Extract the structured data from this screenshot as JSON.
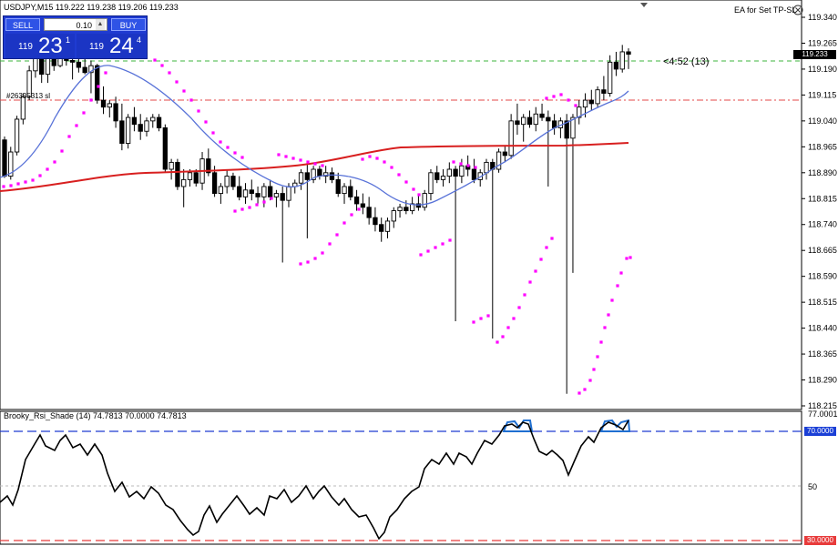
{
  "header": {
    "symbol_info": "USDJPY,M15  119.222 119.238 119.206 119.233",
    "ea_label": "EA for Set TP-SL",
    "ea_icon": "close-circle-icon"
  },
  "trade_panel": {
    "sell_label": "SELL",
    "buy_label": "BUY",
    "lot_value": "0.10",
    "sell_prefix": "119",
    "sell_big": "23",
    "sell_sup": "1",
    "buy_prefix": "119",
    "buy_big": "24",
    "buy_sup": "4",
    "spin_down": "▼",
    "spin_up": "▲"
  },
  "main_chart": {
    "order_label": "#26335313 sl",
    "countdown": "<4:52 (13)",
    "current_price_tag": "119.233",
    "price_ticks": [
      "119.340",
      "119.265",
      "119.190",
      "119.115",
      "119.040",
      "118.965",
      "118.890",
      "118.815",
      "118.740",
      "118.665",
      "118.590",
      "118.515",
      "118.440",
      "118.365",
      "118.290",
      "118.215"
    ]
  },
  "indicator": {
    "title": "Brooky_Rsi_Shade (14) 74.7813 70.0000 74.7813",
    "ticks": [
      "77.0001",
      "70.0000",
      "50",
      "30.0000"
    ]
  },
  "colors": {
    "bull_candle": "#000000",
    "bear_candle": "#000000",
    "ma_fast": "#4a62d6",
    "ma_slow": "#d81f1f",
    "psar": "#ff00ff",
    "rsi_line": "#000000",
    "rsi_shade": "#1f6fd1",
    "level_70": "#1f3bd1",
    "level_30": "#e83b3b"
  },
  "chart_data": {
    "type": "candlestick",
    "symbol": "USDJPY",
    "timeframe": "M15",
    "ylim": [
      118.215,
      119.34
    ],
    "candles_ohlc": [
      [
        118.985,
        118.995,
        118.875,
        118.88
      ],
      [
        118.88,
        118.965,
        118.87,
        118.95
      ],
      [
        118.95,
        119.055,
        118.94,
        119.045
      ],
      [
        119.045,
        119.12,
        119.03,
        119.11
      ],
      [
        119.11,
        119.2,
        119.1,
        119.185
      ],
      [
        119.185,
        119.26,
        119.165,
        119.23
      ],
      [
        119.23,
        119.27,
        119.15,
        119.175
      ],
      [
        119.175,
        119.25,
        119.15,
        119.225
      ],
      [
        119.225,
        119.265,
        119.185,
        119.2
      ],
      [
        119.2,
        119.25,
        119.195,
        119.23
      ],
      [
        119.23,
        119.26,
        119.2,
        119.215
      ],
      [
        119.215,
        119.23,
        119.16,
        119.21
      ],
      [
        119.21,
        119.235,
        119.18,
        119.195
      ],
      [
        119.195,
        119.22,
        119.175,
        119.18
      ],
      [
        119.18,
        119.215,
        119.12,
        119.2
      ],
      [
        119.2,
        119.205,
        119.09,
        119.1
      ],
      [
        119.1,
        119.14,
        119.06,
        119.08
      ],
      [
        119.08,
        119.1,
        119.05,
        119.09
      ],
      [
        119.09,
        119.11,
        119.02,
        119.04
      ],
      [
        119.04,
        119.09,
        118.955,
        118.975
      ],
      [
        118.975,
        119.06,
        118.96,
        119.05
      ],
      [
        119.05,
        119.08,
        119.01,
        119.03
      ],
      [
        119.03,
        119.06,
        118.985,
        119.01
      ],
      [
        119.01,
        119.05,
        118.995,
        119.04
      ],
      [
        119.04,
        119.06,
        119.02,
        119.05
      ],
      [
        119.05,
        119.06,
        119.01,
        119.02
      ],
      [
        119.02,
        119.03,
        118.89,
        118.9
      ],
      [
        118.9,
        118.93,
        118.87,
        118.92
      ],
      [
        118.92,
        118.93,
        118.84,
        118.85
      ],
      [
        118.85,
        118.9,
        118.79,
        118.87
      ],
      [
        118.87,
        118.9,
        118.85,
        118.89
      ],
      [
        118.89,
        118.9,
        118.85,
        118.86
      ],
      [
        118.86,
        118.95,
        118.84,
        118.93
      ],
      [
        118.93,
        118.96,
        118.88,
        118.89
      ],
      [
        118.89,
        118.91,
        118.82,
        118.83
      ],
      [
        118.83,
        118.86,
        118.8,
        118.85
      ],
      [
        118.85,
        118.9,
        118.83,
        118.88
      ],
      [
        118.88,
        118.89,
        118.84,
        118.85
      ],
      [
        118.85,
        118.88,
        118.81,
        118.82
      ],
      [
        118.82,
        118.86,
        118.8,
        118.84
      ],
      [
        118.84,
        118.87,
        118.81,
        118.83
      ],
      [
        118.83,
        118.85,
        118.8,
        118.82
      ],
      [
        118.82,
        118.86,
        118.79,
        118.85
      ],
      [
        118.85,
        118.87,
        118.81,
        118.82
      ],
      [
        118.82,
        118.84,
        118.79,
        118.83
      ],
      [
        118.83,
        118.85,
        118.63,
        118.81
      ],
      [
        118.81,
        118.86,
        118.79,
        118.85
      ],
      [
        118.85,
        118.87,
        118.83,
        118.86
      ],
      [
        118.86,
        118.9,
        118.84,
        118.89
      ],
      [
        118.89,
        118.92,
        118.7,
        118.87
      ],
      [
        118.87,
        118.91,
        118.86,
        118.9
      ],
      [
        118.9,
        118.91,
        118.87,
        118.88
      ],
      [
        118.88,
        118.91,
        118.86,
        118.89
      ],
      [
        118.89,
        118.905,
        118.86,
        118.87
      ],
      [
        118.87,
        118.89,
        118.82,
        118.83
      ],
      [
        118.83,
        118.86,
        118.8,
        118.85
      ],
      [
        118.85,
        118.87,
        118.81,
        118.82
      ],
      [
        118.82,
        118.84,
        118.78,
        118.8
      ],
      [
        118.8,
        118.83,
        118.77,
        118.79
      ],
      [
        118.79,
        118.82,
        118.74,
        118.76
      ],
      [
        118.76,
        118.79,
        118.72,
        118.74
      ],
      [
        118.74,
        118.76,
        118.69,
        118.72
      ],
      [
        118.72,
        118.76,
        118.7,
        118.75
      ],
      [
        118.75,
        118.79,
        118.73,
        118.78
      ],
      [
        118.78,
        118.8,
        118.76,
        118.79
      ],
      [
        118.79,
        118.81,
        118.77,
        118.78
      ],
      [
        118.78,
        118.82,
        118.77,
        118.8
      ],
      [
        118.8,
        118.83,
        118.78,
        118.79
      ],
      [
        118.79,
        118.84,
        118.78,
        118.83
      ],
      [
        118.83,
        118.9,
        118.81,
        118.89
      ],
      [
        118.89,
        118.91,
        118.86,
        118.87
      ],
      [
        118.87,
        118.9,
        118.85,
        118.88
      ],
      [
        118.88,
        118.92,
        118.86,
        118.9
      ],
      [
        118.9,
        118.91,
        118.46,
        118.88
      ],
      [
        118.88,
        118.93,
        118.86,
        118.91
      ],
      [
        118.91,
        118.94,
        118.88,
        118.9
      ],
      [
        118.9,
        118.93,
        118.86,
        118.87
      ],
      [
        118.87,
        118.9,
        118.85,
        118.89
      ],
      [
        118.89,
        118.93,
        118.87,
        118.92
      ],
      [
        118.92,
        118.93,
        118.41,
        118.9
      ],
      [
        118.9,
        118.96,
        118.89,
        118.95
      ],
      [
        118.95,
        118.97,
        118.92,
        118.94
      ],
      [
        118.94,
        119.06,
        118.93,
        119.04
      ],
      [
        119.04,
        119.09,
        119.0,
        119.03
      ],
      [
        119.03,
        119.06,
        118.98,
        119.05
      ],
      [
        119.05,
        119.07,
        119.02,
        119.03
      ],
      [
        119.03,
        119.08,
        119.01,
        119.06
      ],
      [
        119.06,
        119.09,
        119.04,
        119.05
      ],
      [
        119.05,
        119.07,
        118.85,
        119.04
      ],
      [
        119.04,
        119.06,
        119.0,
        119.02
      ],
      [
        119.02,
        119.05,
        118.99,
        119.04
      ],
      [
        119.04,
        119.06,
        118.25,
        118.99
      ],
      [
        118.99,
        119.06,
        118.6,
        119.05
      ],
      [
        119.05,
        119.1,
        119.03,
        119.08
      ],
      [
        119.08,
        119.12,
        119.05,
        119.1
      ],
      [
        119.1,
        119.13,
        119.07,
        119.09
      ],
      [
        119.09,
        119.14,
        119.08,
        119.13
      ],
      [
        119.13,
        119.17,
        119.1,
        119.12
      ],
      [
        119.12,
        119.23,
        119.11,
        119.21
      ],
      [
        119.21,
        119.24,
        119.17,
        119.19
      ],
      [
        119.19,
        119.26,
        119.18,
        119.24
      ],
      [
        119.24,
        119.25,
        119.19,
        119.233
      ]
    ],
    "rsi_level_high": 70,
    "rsi_level_low": 30,
    "rsi_last": 74.7813
  }
}
